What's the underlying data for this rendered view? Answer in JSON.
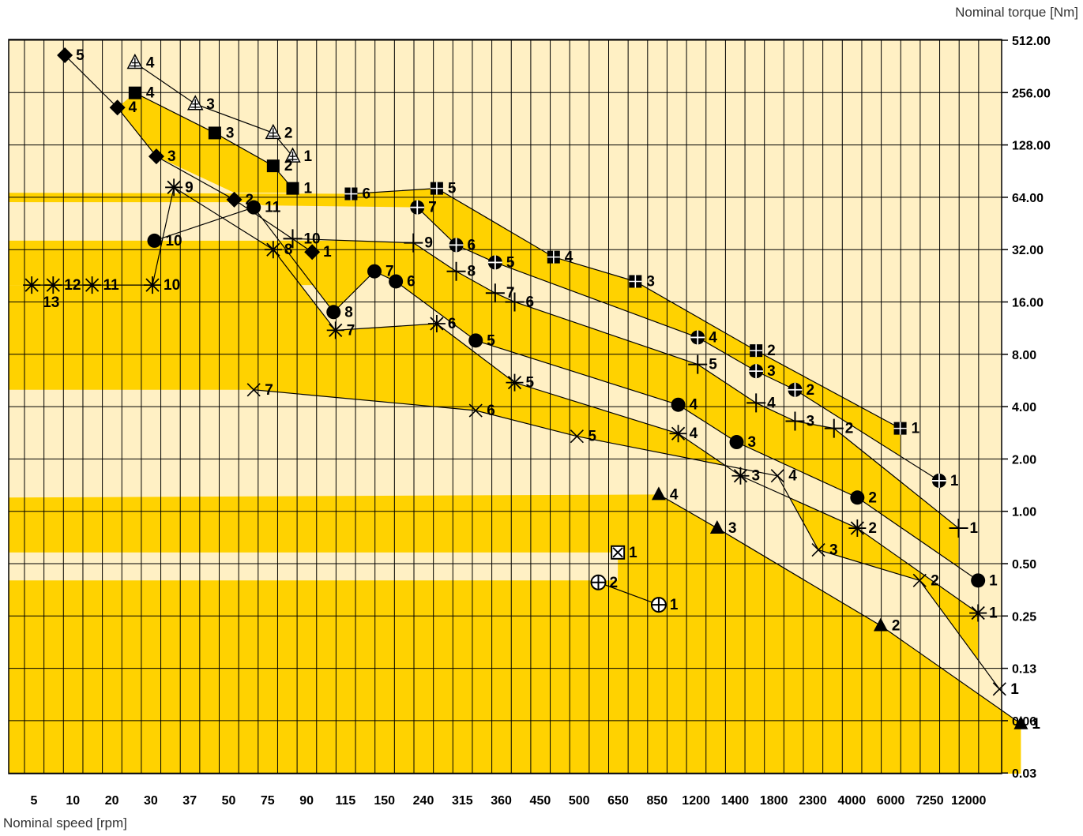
{
  "chart_data": {
    "type": "scatter",
    "title": "",
    "xlabel": "Nominal speed [rpm]",
    "ylabel": "Nominal torque [Nm]",
    "x_scale": "categorical",
    "y_scale": "log2",
    "categories": [
      "5",
      "10",
      "20",
      "30",
      "37",
      "50",
      "75",
      "90",
      "115",
      "150",
      "240",
      "315",
      "360",
      "450",
      "500",
      "650",
      "850",
      "1200",
      "1400",
      "1800",
      "2300",
      "4000",
      "6000",
      "7250",
      "12000"
    ],
    "y_ticks": [
      "512.00",
      "256.00",
      "128.00",
      "64.00",
      "32.00",
      "16.00",
      "8.00",
      "4.00",
      "2.00",
      "1.00",
      "0.50",
      "0.25",
      "0.13",
      "0.06",
      "0.03"
    ],
    "ylim": [
      0.03,
      512
    ],
    "grid": true,
    "colors": {
      "band_dark": "#FFD200",
      "band_light": "#FFF0C4",
      "marker": "#000000",
      "grid": "#000000"
    },
    "series": [
      {
        "marker": "diamond",
        "points": [
          {
            "label": "5",
            "x": 1.3,
            "y": 420
          },
          {
            "label": "4",
            "x": 2.65,
            "y": 210
          },
          {
            "label": "3",
            "x": 3.65,
            "y": 110
          },
          {
            "label": "2",
            "x": 5.65,
            "y": 62
          },
          {
            "label": "1",
            "x": 7.65,
            "y": 31
          }
        ]
      },
      {
        "marker": "triangle-hatched",
        "points": [
          {
            "label": "4",
            "x": 3.1,
            "y": 380
          },
          {
            "label": "3",
            "x": 4.65,
            "y": 220
          },
          {
            "label": "2",
            "x": 6.65,
            "y": 150
          },
          {
            "label": "1",
            "x": 7.15,
            "y": 110
          }
        ]
      },
      {
        "marker": "square",
        "points": [
          {
            "label": "4",
            "x": 3.1,
            "y": 255
          },
          {
            "label": "3",
            "x": 5.15,
            "y": 150
          },
          {
            "label": "2",
            "x": 6.65,
            "y": 97
          },
          {
            "label": "1",
            "x": 7.15,
            "y": 72
          }
        ]
      },
      {
        "marker": "square-grid",
        "points": [
          {
            "label": "6",
            "x": 8.65,
            "y": 67
          },
          {
            "label": "5",
            "x": 10.85,
            "y": 72
          },
          {
            "label": "4",
            "x": 13.85,
            "y": 29
          },
          {
            "label": "3",
            "x": 15.95,
            "y": 21
          },
          {
            "label": "2",
            "x": 19.05,
            "y": 8.4
          },
          {
            "label": "1",
            "x": 22.75,
            "y": 3.0
          }
        ]
      },
      {
        "marker": "circle-cross",
        "points": [
          {
            "label": "7",
            "x": 10.35,
            "y": 56
          },
          {
            "label": "6",
            "x": 11.35,
            "y": 34
          },
          {
            "label": "5",
            "x": 12.35,
            "y": 27
          },
          {
            "label": "4",
            "x": 17.55,
            "y": 10.0
          },
          {
            "label": "3",
            "x": 19.05,
            "y": 6.4
          },
          {
            "label": "2",
            "x": 20.05,
            "y": 5.0
          },
          {
            "label": "1",
            "x": 23.75,
            "y": 1.5
          }
        ]
      },
      {
        "marker": "plus",
        "points": [
          {
            "label": "10",
            "x": 7.15,
            "y": 37
          },
          {
            "label": "9",
            "x": 10.25,
            "y": 35
          },
          {
            "label": "8",
            "x": 11.35,
            "y": 24
          },
          {
            "label": "7",
            "x": 12.35,
            "y": 18
          },
          {
            "label": "6",
            "x": 12.85,
            "y": 16
          },
          {
            "label": "5",
            "x": 17.55,
            "y": 7.0
          },
          {
            "label": "4",
            "x": 19.05,
            "y": 4.2
          },
          {
            "label": "3",
            "x": 20.05,
            "y": 3.3
          },
          {
            "label": "2",
            "x": 21.05,
            "y": 3.0
          },
          {
            "label": "1",
            "x": 24.25,
            "y": 0.8
          }
        ]
      },
      {
        "marker": "circle",
        "points": [
          {
            "label": "10",
            "x": 3.6,
            "y": 36
          },
          {
            "label": "11",
            "x": 6.15,
            "y": 56
          },
          {
            "label": "8",
            "x": 8.2,
            "y": 14
          },
          {
            "label": "7",
            "x": 9.25,
            "y": 24
          },
          {
            "label": "6",
            "x": 9.8,
            "y": 21
          },
          {
            "label": "5",
            "x": 11.85,
            "y": 9.6
          },
          {
            "label": "4",
            "x": 17.05,
            "y": 4.1
          },
          {
            "label": "3",
            "x": 18.55,
            "y": 2.5
          },
          {
            "label": "2",
            "x": 21.65,
            "y": 1.2
          },
          {
            "label": "1",
            "x": 24.75,
            "y": 0.4
          }
        ]
      },
      {
        "marker": "asterisk",
        "points": [
          {
            "label": "13",
            "x": 0.45,
            "y": 20
          },
          {
            "label": "12",
            "x": 1.0,
            "y": 20
          },
          {
            "label": "11",
            "x": 2.0,
            "y": 20
          },
          {
            "label": "10",
            "x": 3.55,
            "y": 20
          },
          {
            "label": "9",
            "x": 4.1,
            "y": 73
          },
          {
            "label": "8",
            "x": 6.65,
            "y": 32
          },
          {
            "label": "7",
            "x": 8.25,
            "y": 11
          },
          {
            "label": "6",
            "x": 10.85,
            "y": 12
          },
          {
            "label": "5",
            "x": 12.85,
            "y": 5.5
          },
          {
            "label": "4",
            "x": 17.05,
            "y": 2.8
          },
          {
            "label": "3",
            "x": 18.65,
            "y": 1.6
          },
          {
            "label": "2",
            "x": 21.65,
            "y": 0.8
          },
          {
            "label": "1",
            "x": 24.75,
            "y": 0.26
          }
        ]
      },
      {
        "marker": "x",
        "points": [
          {
            "label": "7",
            "x": 6.15,
            "y": 5.0
          },
          {
            "label": "6",
            "x": 11.85,
            "y": 3.8
          },
          {
            "label": "5",
            "x": 14.45,
            "y": 2.7
          },
          {
            "label": "4",
            "x": 19.6,
            "y": 1.6
          },
          {
            "label": "3",
            "x": 20.65,
            "y": 0.6
          },
          {
            "label": "2",
            "x": 23.25,
            "y": 0.4
          },
          {
            "label": "1",
            "x": 25.3,
            "y": 0.095
          }
        ]
      },
      {
        "marker": "triangle",
        "points": [
          {
            "label": "4",
            "x": 16.55,
            "y": 1.25
          },
          {
            "label": "3",
            "x": 18.05,
            "y": 0.8
          },
          {
            "label": "2",
            "x": 22.25,
            "y": 0.22
          },
          {
            "label": "1",
            "x": 25.85,
            "y": 0.06
          }
        ]
      },
      {
        "marker": "circle-plus",
        "points": [
          {
            "label": "2",
            "x": 15.0,
            "y": 0.39
          },
          {
            "label": "1",
            "x": 16.55,
            "y": 0.29
          }
        ]
      },
      {
        "marker": "square-x",
        "points": [
          {
            "label": "1",
            "x": 15.5,
            "y": 0.58
          }
        ]
      }
    ]
  }
}
